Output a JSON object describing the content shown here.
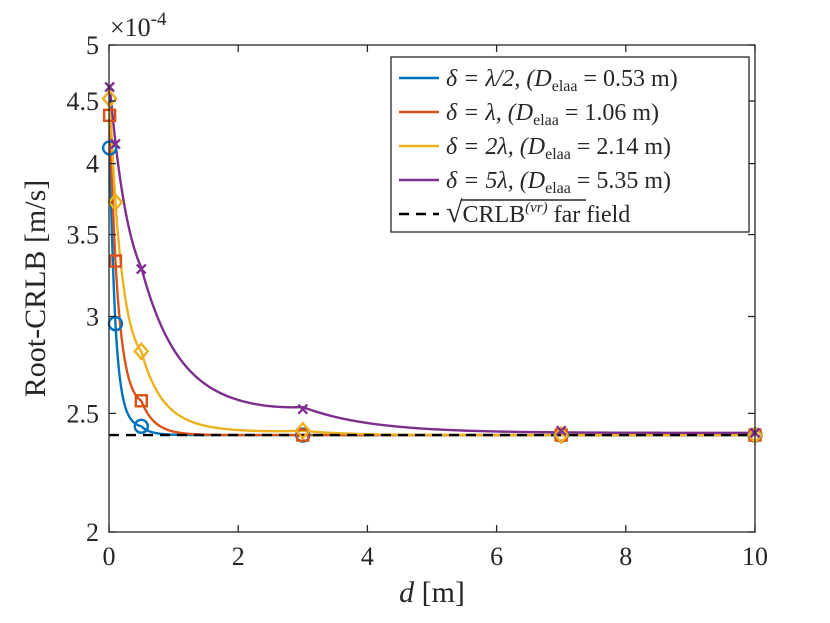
{
  "chart_data": {
    "type": "line",
    "xlabel": "d [m]",
    "ylabel": "Root-CRLB [m/s]",
    "exponent_label": "×10^-4",
    "exponent_base": "×10",
    "exponent_power": "-4",
    "xlim": [
      0,
      10
    ],
    "ylim": [
      2,
      5
    ],
    "y_scale": "log",
    "x_ticks": [
      0,
      2,
      4,
      6,
      8,
      10
    ],
    "x_tick_labels": [
      "0",
      "2",
      "4",
      "6",
      "8",
      "10"
    ],
    "y_ticks": [
      2,
      2.5,
      3,
      3.5,
      4,
      4.5,
      5
    ],
    "y_tick_labels": [
      "2",
      "2.5",
      "3",
      "3.5",
      "4",
      "4.5",
      "5"
    ],
    "far_field_value": 2.4,
    "marker_x": [
      0.01,
      0.1,
      0.5,
      3,
      7,
      10
    ],
    "series": [
      {
        "name": "δ = λ/2, (D_elaa = 0.53 m)",
        "legend_text": "δ = λ/2, (Delaa = 0.53 m)",
        "color": "#0072BD",
        "marker": "circle",
        "values": [
          4.12,
          2.96,
          2.44,
          2.4,
          2.4,
          2.4
        ]
      },
      {
        "name": "δ = λ, (D_elaa = 1.06 m)",
        "legend_text": "δ = λ, (Delaa = 1.06 m)",
        "color": "#D95319",
        "marker": "square",
        "values": [
          4.38,
          3.33,
          2.56,
          2.4,
          2.4,
          2.4
        ]
      },
      {
        "name": "δ = 2λ, (D_elaa = 2.14 m)",
        "legend_text": "δ = 2λ, (Delaa = 2.14 m)",
        "color": "#EDB120",
        "marker": "diamond",
        "values": [
          4.52,
          3.72,
          2.81,
          2.42,
          2.4,
          2.4
        ]
      },
      {
        "name": "δ = 5λ, (D_elaa = 5.35 m)",
        "legend_text": "δ = 5λ, (Delaa = 5.35 m)",
        "color": "#7E2F8E",
        "marker": "x",
        "values": [
          4.62,
          4.15,
          3.28,
          2.52,
          2.42,
          2.41
        ]
      }
    ],
    "far_field_legend": "√CRLB^(v_r) far field",
    "far_field_legend_sqrt": "√",
    "far_field_legend_crlb": "CRLB",
    "far_field_legend_sup": "(vr)",
    "far_field_legend_tail": "far field",
    "far_field_color": "#000000",
    "legend_position": "top-right"
  }
}
